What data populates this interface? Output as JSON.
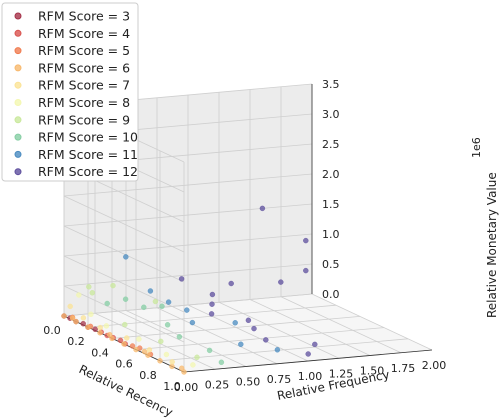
{
  "chart_data": {
    "type": "scatter",
    "xlabel": "Relative Recency",
    "ylabel": "Relative Frequency",
    "zlabel": "Relative Monetary Value",
    "z_scale_label": "1e6",
    "xlim": [
      0.0,
      1.0
    ],
    "ylim": [
      0.0,
      2.0
    ],
    "zlim": [
      0.0,
      3.5
    ],
    "x_ticks": [
      "0.0",
      "0.2",
      "0.4",
      "0.6",
      "0.8",
      "1.0"
    ],
    "y_ticks": [
      "0.00",
      "0.25",
      "0.50",
      "0.75",
      "1.00",
      "1.25",
      "1.50",
      "1.75",
      "2.00"
    ],
    "z_ticks": [
      "0.0",
      "0.5",
      "1.0",
      "1.5",
      "2.0",
      "2.5",
      "3.0",
      "3.5"
    ],
    "grid": true,
    "legend_position": "top-left",
    "series": [
      {
        "name": "RFM Score = 3",
        "color": "#a6334a",
        "points": [
          [
            0.0,
            0.0,
            0.0
          ],
          [
            0.05,
            0.0,
            0.01
          ],
          [
            0.1,
            0.0,
            0.0
          ],
          [
            0.15,
            0.01,
            0.01
          ],
          [
            0.2,
            0.0,
            0.0
          ],
          [
            0.25,
            0.01,
            0.01
          ]
        ]
      },
      {
        "name": "RFM Score = 4",
        "color": "#d9534f",
        "points": [
          [
            0.3,
            0.01,
            0.01
          ],
          [
            0.35,
            0.01,
            0.0
          ],
          [
            0.4,
            0.01,
            0.01
          ],
          [
            0.45,
            0.02,
            0.01
          ],
          [
            0.5,
            0.01,
            0.0
          ]
        ]
      },
      {
        "name": "RFM Score = 5",
        "color": "#f07c50",
        "points": [
          [
            0.05,
            0.02,
            0.02
          ],
          [
            0.2,
            0.02,
            0.01
          ],
          [
            0.55,
            0.02,
            0.01
          ],
          [
            0.6,
            0.03,
            0.02
          ],
          [
            0.7,
            0.02,
            0.01
          ]
        ]
      },
      {
        "name": "RFM Score = 6",
        "color": "#f8b96e",
        "points": [
          [
            0.0,
            0.0,
            0.0
          ],
          [
            0.1,
            0.0,
            0.0
          ],
          [
            0.2,
            0.0,
            0.0
          ],
          [
            0.3,
            0.0,
            0.0
          ],
          [
            0.4,
            0.0,
            0.0
          ],
          [
            0.5,
            0.0,
            0.0
          ],
          [
            0.6,
            0.0,
            0.0
          ],
          [
            0.7,
            0.0,
            0.0
          ],
          [
            0.8,
            0.0,
            0.0
          ],
          [
            0.9,
            0.0,
            0.0
          ],
          [
            1.0,
            0.0,
            0.0
          ],
          [
            0.05,
            0.02,
            0.01
          ],
          [
            0.35,
            0.03,
            0.01
          ],
          [
            0.65,
            0.02,
            0.01
          ],
          [
            0.95,
            0.03,
            0.01
          ]
        ]
      },
      {
        "name": "RFM Score = 7",
        "color": "#fbe396",
        "points": [
          [
            0.0,
            0.05,
            0.15
          ],
          [
            0.1,
            0.06,
            0.05
          ],
          [
            0.25,
            0.05,
            0.03
          ],
          [
            0.45,
            0.07,
            0.04
          ],
          [
            0.65,
            0.06,
            0.03
          ],
          [
            0.85,
            0.05,
            0.02
          ]
        ]
      },
      {
        "name": "RFM Score = 8",
        "color": "#f3f7b0",
        "points": [
          [
            0.02,
            0.1,
            0.35
          ],
          [
            0.1,
            0.12,
            0.1
          ],
          [
            0.25,
            0.1,
            0.05
          ],
          [
            0.5,
            0.12,
            0.06
          ],
          [
            0.75,
            0.1,
            0.04
          ],
          [
            0.95,
            0.12,
            0.05
          ]
        ]
      },
      {
        "name": "RFM Score = 9",
        "color": "#c9e89c",
        "points": [
          [
            0.0,
            0.2,
            0.45
          ],
          [
            0.05,
            0.18,
            0.4
          ],
          [
            0.15,
            0.25,
            0.6
          ],
          [
            0.3,
            0.2,
            0.1
          ],
          [
            0.4,
            0.35,
            0.55
          ],
          [
            0.6,
            0.2,
            0.1
          ],
          [
            0.85,
            0.25,
            0.06
          ]
        ]
      },
      {
        "name": "RFM Score = 10",
        "color": "#86cea4",
        "points": [
          [
            0.05,
            0.3,
            0.2
          ],
          [
            0.1,
            0.4,
            0.3
          ],
          [
            0.2,
            0.45,
            0.25
          ],
          [
            0.3,
            0.5,
            0.35
          ],
          [
            0.45,
            0.4,
            0.2
          ],
          [
            0.6,
            0.35,
            0.15
          ],
          [
            0.8,
            0.4,
            0.1
          ],
          [
            0.95,
            0.35,
            0.05
          ]
        ]
      },
      {
        "name": "RFM Score = 11",
        "color": "#4a8bc0",
        "points": [
          [
            0.0,
            0.2,
            2.85
          ],
          [
            0.05,
            0.45,
            0.95
          ],
          [
            0.1,
            0.6,
            0.4
          ],
          [
            0.2,
            0.65,
            0.3
          ],
          [
            0.3,
            0.7,
            0.25
          ],
          [
            0.45,
            0.6,
            0.2
          ],
          [
            0.6,
            0.8,
            0.3
          ],
          [
            0.75,
            0.7,
            0.1
          ],
          [
            0.9,
            0.85,
            0.12
          ]
        ]
      },
      {
        "name": "RFM Score = 12",
        "color": "#5e4f9e",
        "points": [
          [
            0.0,
            1.6,
            1.5
          ],
          [
            0.0,
            1.95,
            0.9
          ],
          [
            0.0,
            1.95,
            0.4
          ],
          [
            0.05,
            1.7,
            0.3
          ],
          [
            0.05,
            1.3,
            0.35
          ],
          [
            0.05,
            0.9,
            0.5
          ],
          [
            0.1,
            1.1,
            0.25
          ],
          [
            0.2,
            1.0,
            0.2
          ],
          [
            0.3,
            0.9,
            0.15
          ],
          [
            0.4,
            1.1,
            0.1
          ],
          [
            0.55,
            1.0,
            0.12
          ],
          [
            0.7,
            0.95,
            0.08
          ],
          [
            0.85,
            1.2,
            0.1
          ],
          [
            0.95,
            1.05,
            0.06
          ]
        ]
      }
    ]
  }
}
